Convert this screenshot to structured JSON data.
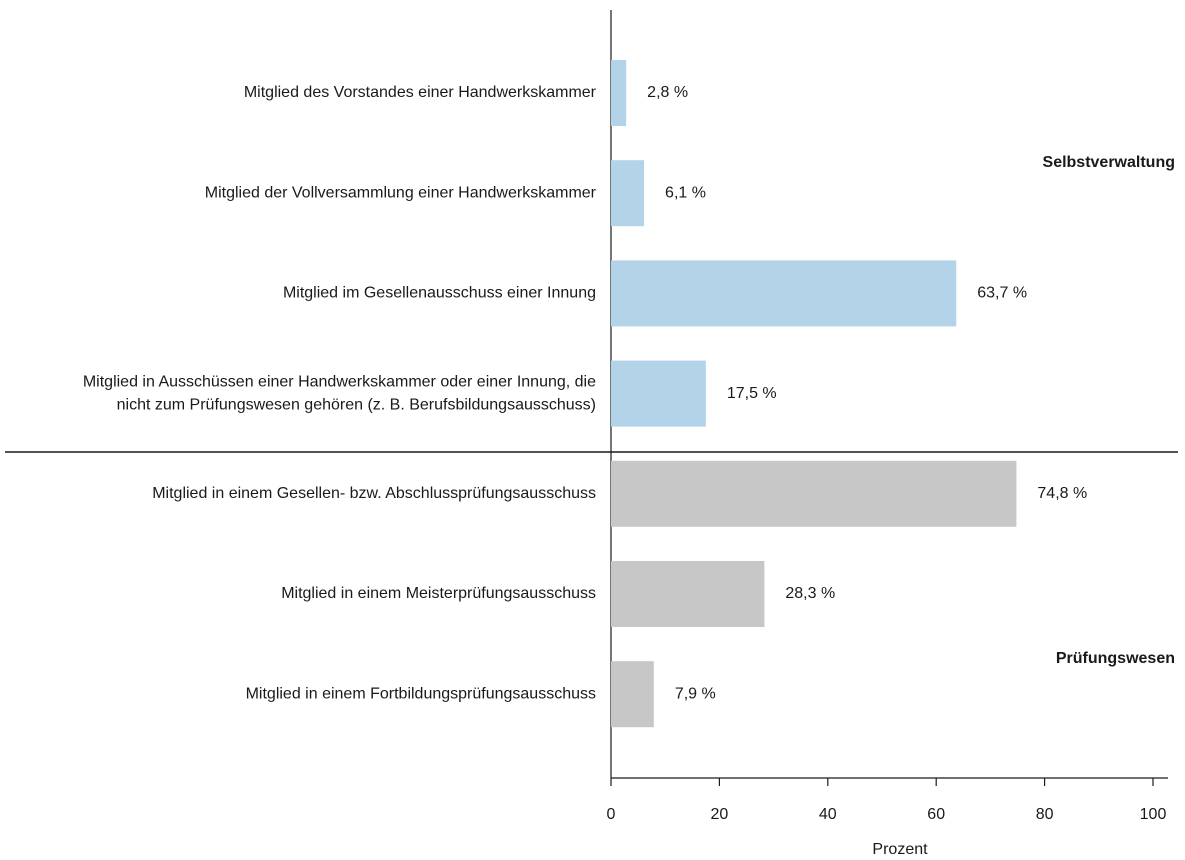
{
  "chart_data": {
    "type": "bar",
    "orientation": "horizontal",
    "categories": [
      "Mitglied des Vorstandes einer Handwerkskammer",
      "Mitglied der Vollversammlung einer Handwerkskammer",
      "Mitglied im Gesellenausschuss einer Innung",
      [
        "Mitglied in Ausschüssen einer Handwerkskammer oder einer Innung, die",
        "nicht zum Prüfungswesen gehören (z. B. Berufsbildungsausschuss)"
      ],
      "Mitglied in einem Gesellen- bzw. Abschlussprüfungsausschuss",
      "Mitglied in einem Meisterprüfungsausschuss",
      "Mitglied in einem Fortbildungsprüfungsausschuss"
    ],
    "values": [
      2.8,
      6.1,
      63.7,
      17.5,
      74.8,
      28.3,
      7.9
    ],
    "value_labels": [
      "2,8 %",
      "6,1 %",
      "63,7 %",
      "17,5 %",
      "74,8 %",
      "28,3 %",
      "7,9 %"
    ],
    "colors": [
      "#b3d3e8",
      "#b3d3e8",
      "#b3d3e8",
      "#b3d3e8",
      "#c6c7c6",
      "#c6c7c6",
      "#c6c7c6"
    ],
    "group_labels": [
      "Selbstverwaltung",
      "Prüfungswesen"
    ],
    "xlabel": "Prozent",
    "xlim": [
      0,
      100
    ],
    "xticks": [
      0,
      20,
      40,
      60,
      80,
      100
    ]
  }
}
